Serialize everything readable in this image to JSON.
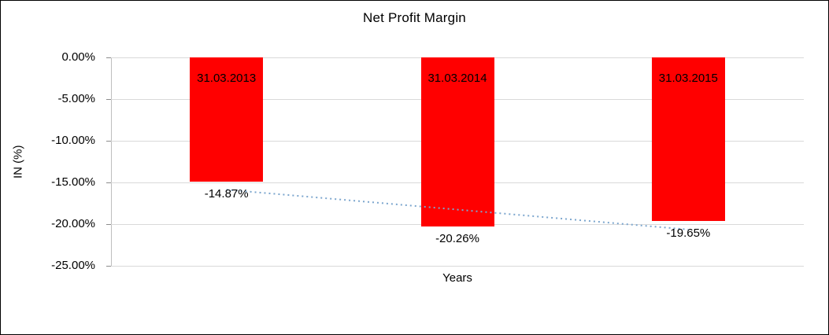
{
  "chart_data": {
    "type": "bar",
    "title": "Net Profit Margin",
    "xlabel": "Years",
    "ylabel": "IN (%)",
    "categories": [
      "31.03.2013",
      "31.03.2014",
      "31.03.2015"
    ],
    "values": [
      -14.87,
      -20.26,
      -19.65
    ],
    "value_labels": [
      "-14.87%",
      "-20.26%",
      "-19.65%"
    ],
    "ylim": [
      -25,
      0
    ],
    "ytick_labels": [
      "0.00%",
      "-5.00%",
      "-10.00%",
      "-15.00%",
      "-20.00%",
      "-25.00%"
    ],
    "grid": true,
    "legend": "none",
    "bar_color": "#ff0000",
    "trendline_color": "#7ca6ce",
    "trendline_style": "dotted"
  }
}
